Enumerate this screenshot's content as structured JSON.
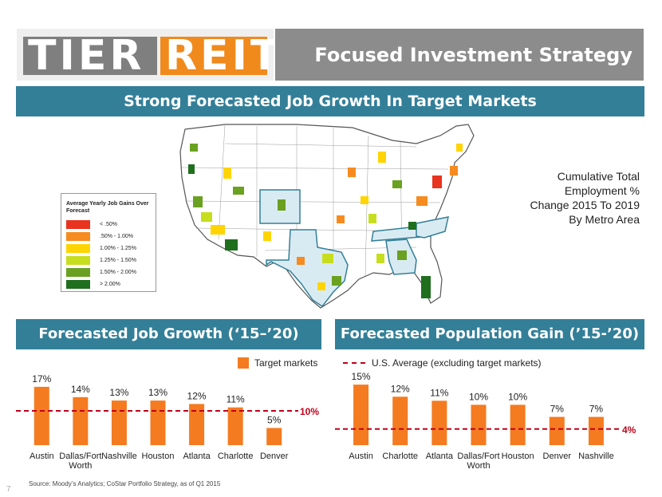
{
  "header": {
    "logo_tier": "TIER",
    "logo_reit": "REIT",
    "title": "Focused Investment Strategy"
  },
  "banner": "Strong Forecasted Job Growth In Target Markets",
  "map": {
    "legend_title": "Average Yearly Job Gains Over Forecast",
    "legend_items": [
      {
        "label": "< .50%",
        "color": "#e8331e"
      },
      {
        "label": ".50% - 1.00%",
        "color": "#f68b1f"
      },
      {
        "label": "1.00% - 1.25%",
        "color": "#ffd400"
      },
      {
        "label": "1.25% - 1.50%",
        "color": "#c7de1e"
      },
      {
        "label": "1.50% - 2.00%",
        "color": "#6aa121"
      },
      {
        "label": "> 2.00%",
        "color": "#1f6f1f"
      }
    ],
    "caption": [
      "Cumulative Total",
      "Employment %",
      "Change 2015 To 2019",
      "By Metro Area"
    ]
  },
  "colors": {
    "accent_teal": "#337f98",
    "bar_orange": "#f47b20",
    "avg_line_red": "#c0001a"
  },
  "legend": {
    "target_markets": "Target markets",
    "us_average": "U.S. Average (excluding target markets)"
  },
  "chart_data": [
    {
      "type": "bar",
      "title": "Forecasted Job Growth (‘15–’20)",
      "categories": [
        "Austin",
        "Dallas/Fort Worth",
        "Nashville",
        "Houston",
        "Atlanta",
        "Charlotte",
        "Denver"
      ],
      "category_lines": [
        [
          "Austin"
        ],
        [
          "Dallas/Fort",
          "Worth"
        ],
        [
          "Nashville"
        ],
        [
          "Houston"
        ],
        [
          "Atlanta"
        ],
        [
          "Charlotte"
        ],
        [
          "Denver"
        ]
      ],
      "values": [
        17,
        14,
        13,
        13,
        12,
        11,
        5
      ],
      "value_labels": [
        "17%",
        "14%",
        "13%",
        "13%",
        "12%",
        "11%",
        "5%"
      ],
      "reference_line": {
        "name": "U.S. Average (excluding target markets)",
        "value": 10,
        "label": "10%"
      },
      "ylim": [
        0,
        20
      ],
      "xlabel": "",
      "ylabel": ""
    },
    {
      "type": "bar",
      "title": "Forecasted Population Gain (’15-’20)",
      "categories": [
        "Austin",
        "Charlotte",
        "Atlanta",
        "Dallas/Fort Worth",
        "Houston",
        "Denver",
        "Nashville"
      ],
      "category_lines": [
        [
          "Austin"
        ],
        [
          "Charlotte"
        ],
        [
          "Atlanta"
        ],
        [
          "Dallas/Fort",
          "Worth"
        ],
        [
          "Houston"
        ],
        [
          "Denver"
        ],
        [
          "Nashville"
        ]
      ],
      "values": [
        15,
        12,
        11,
        10,
        10,
        7,
        7
      ],
      "value_labels": [
        "15%",
        "12%",
        "11%",
        "10%",
        "10%",
        "7%",
        "7%"
      ],
      "reference_line": {
        "name": "U.S. Average (excluding target markets)",
        "value": 4,
        "label": "4%"
      },
      "ylim": [
        0,
        17
      ],
      "xlabel": "",
      "ylabel": ""
    }
  ],
  "footer": {
    "source": "Source: Moody’s Analytics; CoStar Portfolio Strategy, as of Q1 2015",
    "page": "7"
  }
}
